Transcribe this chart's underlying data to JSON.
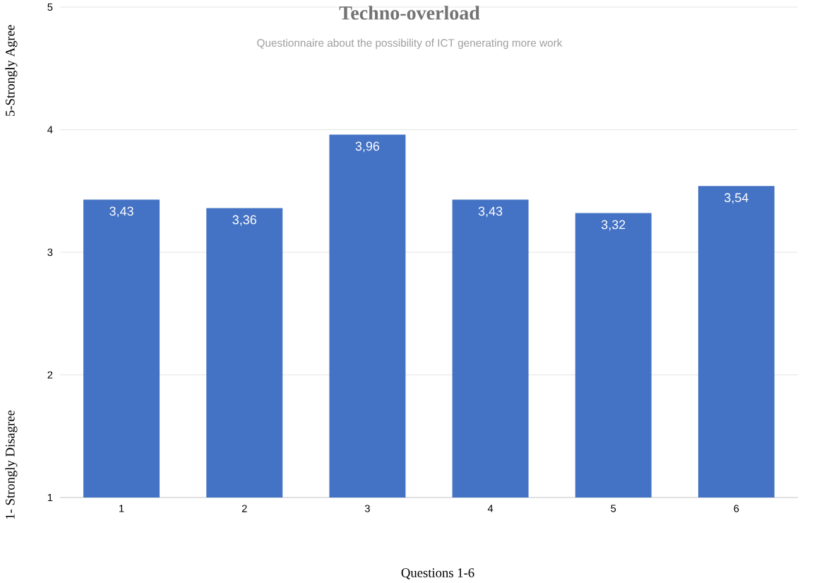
{
  "chart_data": {
    "type": "bar",
    "title": "Techno-overload",
    "subtitle": "Questionnaire about the possibility of ICT generating more work",
    "xlabel": "Questions 1-6",
    "ylabel": "1- Strongly Disagree",
    "annotations": [
      "5-Strongly Agree"
    ],
    "categories": [
      "1",
      "2",
      "3",
      "4",
      "5",
      "6"
    ],
    "values": [
      3.43,
      3.36,
      3.96,
      3.43,
      3.32,
      3.54
    ],
    "value_labels": [
      "3,43",
      "3,36",
      "3,96",
      "3,43",
      "3,32",
      "3,54"
    ],
    "color": "#4472c4",
    "ylim": [
      1,
      5
    ],
    "yticks": [
      1,
      2,
      3,
      4,
      5
    ],
    "grid": "y"
  }
}
